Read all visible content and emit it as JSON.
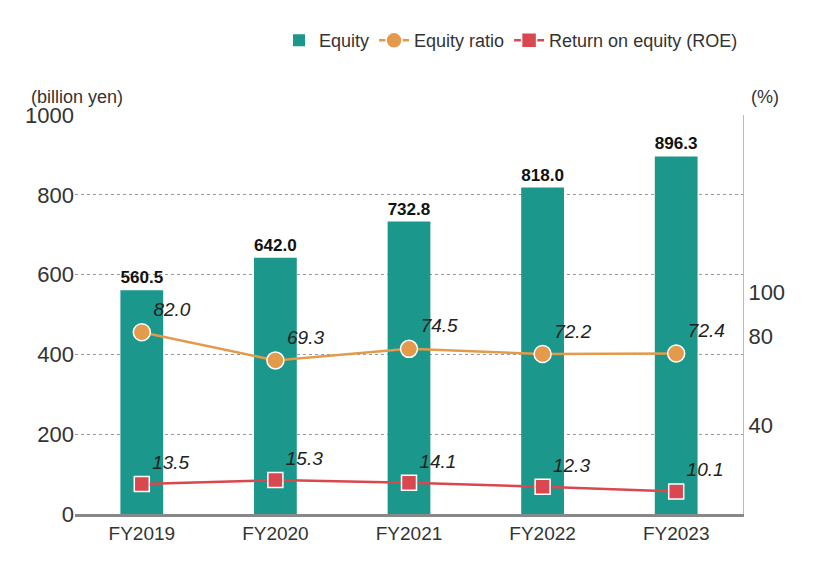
{
  "chart_data": {
    "type": "bar",
    "y_label": "(billion yen)",
    "y2_label": "(%)",
    "categories": [
      "FY2019",
      "FY2020",
      "FY2021",
      "FY2022",
      "FY2023"
    ],
    "series": [
      {
        "name": "Equity",
        "type": "bar",
        "color": "#1b978b",
        "values": [
          560.5,
          642.0,
          732.8,
          818.0,
          896.3
        ],
        "value_labels": [
          "560.5",
          "642.0",
          "732.8",
          "818.0",
          "896.3"
        ]
      },
      {
        "name": "Equity ratio",
        "type": "line",
        "axis": "y2",
        "color": "#e39b4b",
        "marker": "circle",
        "line_style": "solid",
        "values": [
          82.0,
          69.3,
          74.5,
          72.2,
          72.4
        ],
        "value_labels": [
          "82.0",
          "69.3",
          "74.5",
          "72.2",
          "72.4"
        ]
      },
      {
        "name": "Return on equity (ROE)",
        "type": "line",
        "axis": "y2",
        "color": "#d9474f",
        "marker": "square",
        "line_style": "solid",
        "values": [
          13.5,
          15.3,
          14.1,
          12.3,
          10.1
        ],
        "value_labels": [
          "13.5",
          "15.3",
          "14.1",
          "12.3",
          "10.1"
        ]
      }
    ],
    "ylim": [
      0,
      1000
    ],
    "yticks": [
      0,
      200,
      400,
      600,
      800,
      1000
    ],
    "y2lim": [
      0,
      180
    ],
    "y2ticks": [
      40,
      80,
      100
    ],
    "grid": true,
    "legend": "top right",
    "data_labels": true
  }
}
